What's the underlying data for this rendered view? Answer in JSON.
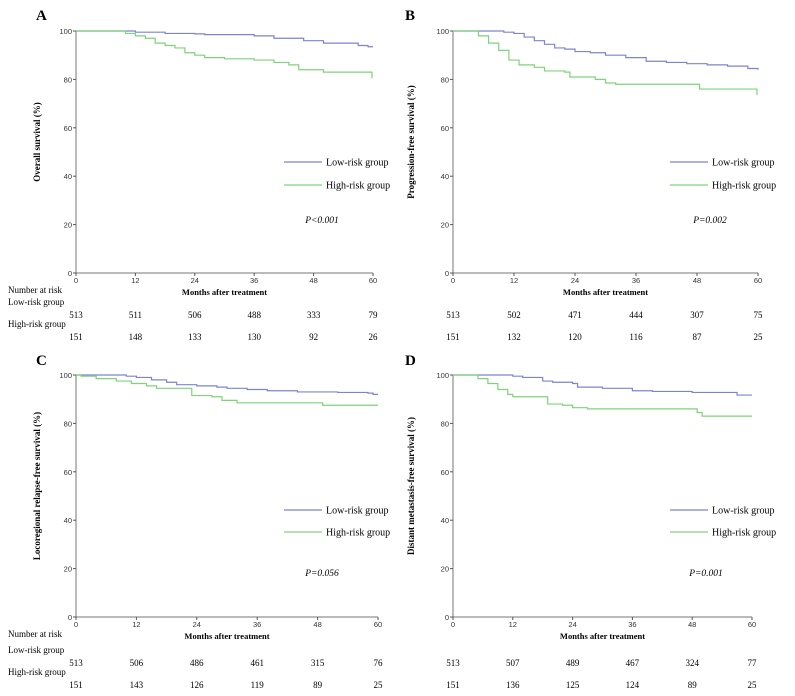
{
  "chart_data": [
    {
      "panel_label": "A",
      "type": "line",
      "step": true,
      "xlabel": "Months after treatment",
      "ylabel": "Overall survival (%)",
      "xlim": [
        0,
        60
      ],
      "ylim": [
        0,
        100
      ],
      "xticks": [
        0,
        12,
        24,
        36,
        48,
        60
      ],
      "yticks": [
        0,
        20,
        40,
        60,
        80,
        100
      ],
      "grid": false,
      "legend_placement": "right-middle",
      "p_value": "P<0.001",
      "series": [
        {
          "name": "Low-risk group",
          "color": "#7b84d4",
          "points": [
            [
              0,
              100
            ],
            [
              9,
              100
            ],
            [
              12,
              99.5
            ],
            [
              18,
              99
            ],
            [
              24,
              98.8
            ],
            [
              26,
              98.5
            ],
            [
              36,
              98
            ],
            [
              40,
              97
            ],
            [
              46,
              96
            ],
            [
              50,
              95
            ],
            [
              54,
              95
            ],
            [
              57,
              94
            ],
            [
              59,
              93.5
            ],
            [
              60,
              93.5
            ]
          ]
        },
        {
          "name": "High-risk group",
          "color": "#7fd37a",
          "points": [
            [
              0,
              100
            ],
            [
              8,
              100
            ],
            [
              10,
              99
            ],
            [
              12,
              98
            ],
            [
              14,
              97
            ],
            [
              16,
              95
            ],
            [
              18,
              94
            ],
            [
              20,
              93
            ],
            [
              22,
              91
            ],
            [
              24,
              90
            ],
            [
              26,
              89
            ],
            [
              30,
              88.5
            ],
            [
              36,
              88
            ],
            [
              40,
              87
            ],
            [
              43,
              86
            ],
            [
              45,
              84
            ],
            [
              49,
              84
            ],
            [
              50,
              83
            ],
            [
              59.6,
              83
            ],
            [
              59.8,
              80.5
            ]
          ]
        }
      ],
      "risk_table": {
        "title": "Number at risk",
        "rows": [
          {
            "label": "Low-risk group",
            "values": [
              513,
              511,
              506,
              488,
              333,
              79
            ]
          },
          {
            "label": "High-risk group",
            "values": [
              151,
              148,
              133,
              130,
              92,
              26
            ]
          }
        ]
      }
    },
    {
      "panel_label": "B",
      "type": "line",
      "step": true,
      "xlabel": "Months after treatment",
      "ylabel": "Progression-free survival (%)",
      "xlim": [
        0,
        60
      ],
      "ylim": [
        0,
        100
      ],
      "xticks": [
        0,
        12,
        24,
        36,
        48,
        60
      ],
      "yticks": [
        0,
        20,
        40,
        60,
        80,
        100
      ],
      "grid": false,
      "legend_placement": "right-middle",
      "p_value": "P=0.002",
      "series": [
        {
          "name": "Low-risk group",
          "color": "#7b84d4",
          "points": [
            [
              0,
              100
            ],
            [
              8,
              100
            ],
            [
              10,
              99.5
            ],
            [
              12,
              99
            ],
            [
              14,
              97.5
            ],
            [
              16,
              96
            ],
            [
              18,
              94.5
            ],
            [
              20,
              93
            ],
            [
              22,
              92.5
            ],
            [
              24,
              91.5
            ],
            [
              27,
              91
            ],
            [
              30,
              90
            ],
            [
              34,
              89
            ],
            [
              38,
              87.5
            ],
            [
              42,
              87
            ],
            [
              46,
              86.5
            ],
            [
              50,
              86
            ],
            [
              54,
              85.5
            ],
            [
              58,
              84.5
            ],
            [
              60,
              84
            ]
          ]
        },
        {
          "name": "High-risk group",
          "color": "#7fd37a",
          "points": [
            [
              0,
              100
            ],
            [
              4,
              100
            ],
            [
              5,
              98
            ],
            [
              7,
              95
            ],
            [
              9,
              92
            ],
            [
              11,
              88
            ],
            [
              13,
              86
            ],
            [
              16,
              85
            ],
            [
              18,
              83.5
            ],
            [
              22,
              83
            ],
            [
              23,
              81
            ],
            [
              28,
              80
            ],
            [
              30,
              78.5
            ],
            [
              32,
              78
            ],
            [
              48,
              78
            ],
            [
              48.5,
              76
            ],
            [
              59.6,
              76
            ],
            [
              59.8,
              73.5
            ]
          ]
        }
      ],
      "risk_table": {
        "title": "",
        "rows": [
          {
            "label": "",
            "values": [
              513,
              502,
              471,
              444,
              307,
              75
            ]
          },
          {
            "label": "",
            "values": [
              151,
              132,
              120,
              116,
              87,
              25
            ]
          }
        ]
      }
    },
    {
      "panel_label": "C",
      "type": "line",
      "step": true,
      "xlabel": "Months after treatment",
      "ylabel": "Locoregional relapse-free survival (%)",
      "xlim": [
        0,
        60
      ],
      "ylim": [
        0,
        100
      ],
      "xticks": [
        0,
        12,
        24,
        36,
        48,
        60
      ],
      "yticks": [
        0,
        20,
        40,
        60,
        80,
        100
      ],
      "grid": false,
      "legend_placement": "right-middle",
      "p_value": "P=0.056",
      "series": [
        {
          "name": "Low-risk group",
          "color": "#7b84d4",
          "points": [
            [
              0,
              100
            ],
            [
              8,
              100
            ],
            [
              10,
              99.5
            ],
            [
              12,
              99
            ],
            [
              15,
              98
            ],
            [
              18,
              97
            ],
            [
              20,
              96
            ],
            [
              24,
              95.5
            ],
            [
              28,
              95
            ],
            [
              30,
              94.5
            ],
            [
              34,
              94
            ],
            [
              38,
              93.5
            ],
            [
              44,
              93
            ],
            [
              52,
              92.8
            ],
            [
              58,
              92.5
            ],
            [
              59,
              92
            ],
            [
              60,
              92
            ]
          ]
        },
        {
          "name": "High-risk group",
          "color": "#7fd37a",
          "points": [
            [
              0,
              100
            ],
            [
              1,
              99.5
            ],
            [
              4,
              98.5
            ],
            [
              8,
              97.5
            ],
            [
              11,
              96.5
            ],
            [
              14,
              95.5
            ],
            [
              16,
              94.5
            ],
            [
              22,
              94.5
            ],
            [
              23,
              91.5
            ],
            [
              27,
              91
            ],
            [
              29,
              89.5
            ],
            [
              32,
              88.5
            ],
            [
              48,
              88.5
            ],
            [
              49,
              87.5
            ],
            [
              60,
              87.5
            ]
          ]
        }
      ],
      "risk_table": {
        "title": "Number at risk",
        "rows": [
          {
            "label": "Low-risk group",
            "values": [
              513,
              506,
              486,
              461,
              315,
              76
            ]
          },
          {
            "label": "High-risk group",
            "values": [
              151,
              143,
              126,
              119,
              89,
              25
            ]
          }
        ]
      }
    },
    {
      "panel_label": "D",
      "type": "line",
      "step": true,
      "xlabel": "Months after treatment",
      "ylabel": "Distant metastasis-free survival (%)",
      "xlim": [
        0,
        60
      ],
      "ylim": [
        0,
        100
      ],
      "xticks": [
        0,
        12,
        24,
        36,
        48,
        60
      ],
      "yticks": [
        0,
        20,
        40,
        60,
        80,
        100
      ],
      "grid": false,
      "legend_placement": "right-middle",
      "p_value": "P=0.001",
      "series": [
        {
          "name": "Low-risk group",
          "color": "#7b84d4",
          "points": [
            [
              0,
              100
            ],
            [
              8,
              100
            ],
            [
              12,
              99.5
            ],
            [
              14,
              99
            ],
            [
              18,
              97.5
            ],
            [
              20,
              97
            ],
            [
              24,
              96.5
            ],
            [
              25,
              95
            ],
            [
              30,
              94.5
            ],
            [
              36,
              93.5
            ],
            [
              40,
              93.2
            ],
            [
              48,
              92.8
            ],
            [
              56,
              92.8
            ],
            [
              57,
              91.7
            ],
            [
              60,
              91.7
            ]
          ]
        },
        {
          "name": "High-risk group",
          "color": "#7fd37a",
          "points": [
            [
              0,
              100
            ],
            [
              4,
              100
            ],
            [
              5,
              98.5
            ],
            [
              7,
              96.5
            ],
            [
              9,
              94
            ],
            [
              11,
              92
            ],
            [
              12,
              91
            ],
            [
              18,
              91
            ],
            [
              19,
              88
            ],
            [
              22,
              87.5
            ],
            [
              24,
              86.5
            ],
            [
              27,
              86
            ],
            [
              48,
              86
            ],
            [
              49,
              84.5
            ],
            [
              50,
              83
            ],
            [
              60,
              83
            ]
          ]
        }
      ],
      "risk_table": {
        "title": "",
        "rows": [
          {
            "label": "",
            "values": [
              513,
              507,
              489,
              467,
              324,
              77
            ]
          },
          {
            "label": "",
            "values": [
              151,
              136,
              125,
              124,
              89,
              25
            ]
          }
        ]
      }
    }
  ]
}
